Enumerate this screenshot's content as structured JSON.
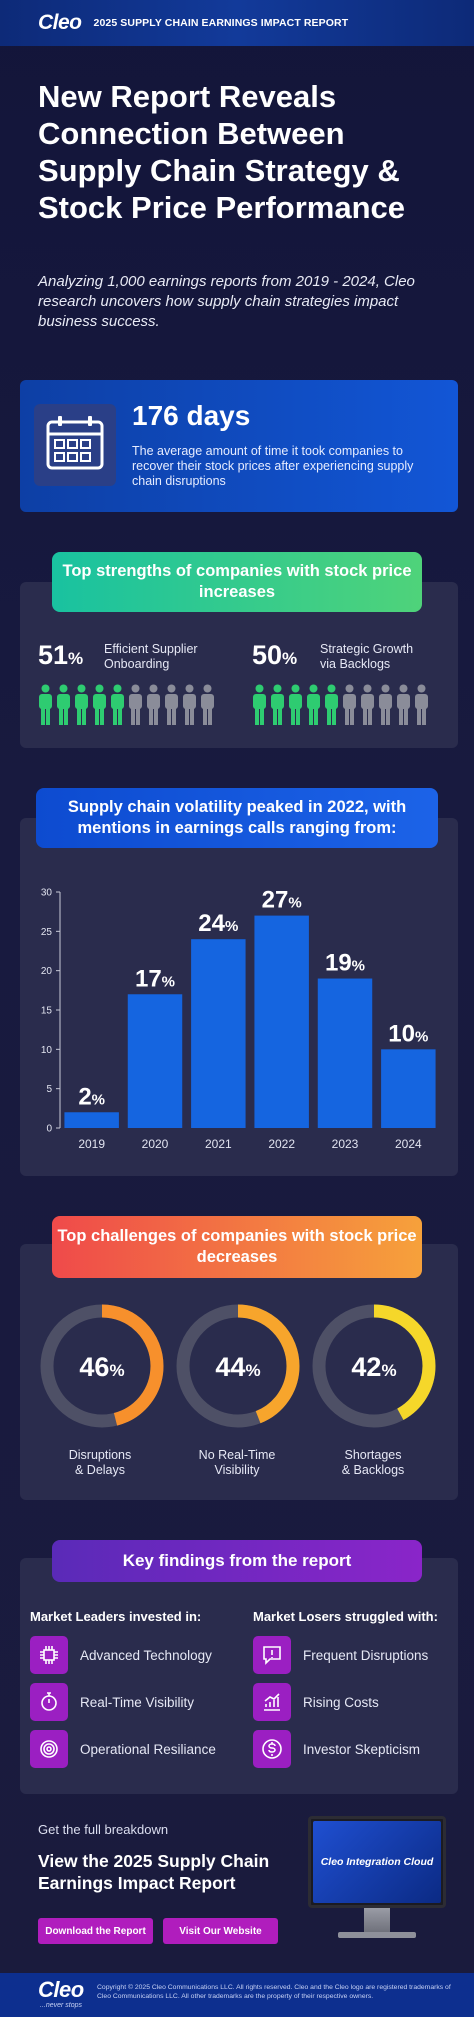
{
  "header": {
    "logo": "Cleo",
    "report_title": "2025 SUPPLY CHAIN EARNINGS IMPACT REPORT"
  },
  "hero": {
    "title": "New Report Reveals Connection Between Supply Chain Strategy & Stock Price Performance",
    "subtitle": "Analyzing 1,000 earnings reports from 2019 - 2024, Cleo research uncovers how supply chain strategies impact business success."
  },
  "days": {
    "value": "176 days",
    "text": "The average amount of time it took companies to recover their stock prices after experiencing supply chain disruptions",
    "icon": "calendar-icon"
  },
  "strengths": {
    "title": "Top strengths of companies with stock price increases",
    "items": [
      {
        "pct": "51",
        "unit": "%",
        "label": "Efficient Supplier Onboarding",
        "filled": 5,
        "total": 10
      },
      {
        "pct": "50",
        "unit": "%",
        "label": "Strategic Growth via Backlogs",
        "filled": 5,
        "total": 10
      }
    ],
    "colors": {
      "filled": "#2ecc71",
      "empty": "#8a8c99"
    }
  },
  "volatility": {
    "title": "Supply chain volatility peaked in 2022, with mentions in earnings calls ranging from:"
  },
  "chart_data": {
    "type": "bar",
    "categories": [
      "2019",
      "2020",
      "2021",
      "2022",
      "2023",
      "2024"
    ],
    "values": [
      2,
      17,
      24,
      27,
      19,
      10
    ],
    "value_labels": [
      "2",
      "17",
      "24",
      "27",
      "19",
      "10"
    ],
    "value_unit": "%",
    "yticks": [
      "0",
      "5",
      "10",
      "15",
      "20",
      "25",
      "30"
    ],
    "ylim": [
      0,
      30
    ],
    "title": "",
    "xlabel": "",
    "ylabel": "",
    "bar_color": "#1565e0"
  },
  "challenges": {
    "title": "Top challenges of companies with stock price decreases",
    "items": [
      {
        "pct": "46",
        "unit": "%",
        "label_line1": "Disruptions",
        "label_line2": "& Delays",
        "value": 46,
        "color": "#f7902c"
      },
      {
        "pct": "44",
        "unit": "%",
        "label_line1": "No Real-Time",
        "label_line2": "Visibility",
        "value": 44,
        "color": "#f7a52c"
      },
      {
        "pct": "42",
        "unit": "%",
        "label_line1": "Shortages",
        "label_line2": "& Backlogs",
        "value": 42,
        "color": "#f5d72a"
      }
    ],
    "track_color": "#4e5066"
  },
  "findings": {
    "title": "Key findings from the report",
    "leaders_head": "Market Leaders invested in:",
    "losers_head": "Market Losers struggled with:",
    "leaders": [
      {
        "label": "Advanced Technology",
        "icon": "circuit-icon"
      },
      {
        "label": "Real-Time Visibility",
        "icon": "stopwatch-icon"
      },
      {
        "label": "Operational Resiliance",
        "icon": "target-icon"
      }
    ],
    "losers": [
      {
        "label": "Frequent Disruptions",
        "icon": "alert-icon"
      },
      {
        "label": "Rising Costs",
        "icon": "rising-chart-icon"
      },
      {
        "label": "Investor Skepticism",
        "icon": "dollar-icon"
      }
    ]
  },
  "cta": {
    "small": "Get the full breakdown",
    "title": "View the 2025 Supply Chain Earnings Impact Report",
    "download_label": "Download the Report",
    "visit_label": "Visit Our Website",
    "monitor_text": "Cleo Integration Cloud"
  },
  "footer": {
    "logo": "Cleo",
    "tagline": "...never stops",
    "legal": "Copyright © 2025 Cleo Communications LLC. All rights reserved. Cleo and the Cleo logo are registered trademarks of Cleo Communications LLC. All other trademarks are the property of their respective owners."
  }
}
